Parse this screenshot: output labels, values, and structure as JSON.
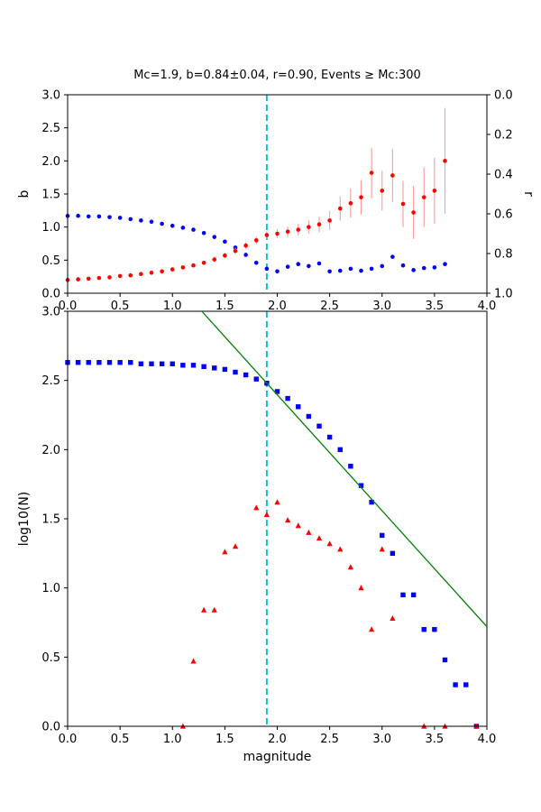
{
  "figure": {
    "title": "Mc=1.9, b=0.84±0.04, r=0.90, Events ≥ Mc:300",
    "background": "#ffffff"
  },
  "colors": {
    "blue": "#0000ff",
    "red": "#ff0000",
    "green": "#008000",
    "cyan": "#00c4cc",
    "errorbar": "#ff9a9a",
    "axis": "#000000"
  },
  "chart_data": [
    {
      "name": "b-and-r-vs-magnitude",
      "type": "scatter",
      "title": "Mc=1.9, b=0.84±0.04, r=0.90, Events ≥ Mc:300",
      "xlabel": "",
      "ylabel_left": "b",
      "ylabel_right": "r",
      "xlim": [
        0.0,
        4.0
      ],
      "ylim_left": [
        0.0,
        3.0
      ],
      "ylim_right_top_to_bottom": [
        0.0,
        1.0
      ],
      "xticks": [
        0.0,
        0.5,
        1.0,
        1.5,
        2.0,
        2.5,
        3.0,
        3.5,
        4.0
      ],
      "yticks_left": [
        0.0,
        0.5,
        1.0,
        1.5,
        2.0,
        2.5,
        3.0
      ],
      "yticks_right": [
        0.0,
        0.2,
        0.4,
        0.6,
        0.8,
        1.0
      ],
      "grid": false,
      "vline_x": 1.9,
      "series": [
        {
          "name": "b-value",
          "marker": "circle",
          "color": "blue",
          "x": [
            0.0,
            0.1,
            0.2,
            0.3,
            0.4,
            0.5,
            0.6,
            0.7,
            0.8,
            0.9,
            1.0,
            1.1,
            1.2,
            1.3,
            1.4,
            1.5,
            1.6,
            1.7,
            1.8,
            1.9,
            2.0,
            2.1,
            2.2,
            2.3,
            2.4,
            2.5,
            2.6,
            2.7,
            2.8,
            2.9,
            3.0,
            3.1,
            3.2,
            3.3,
            3.4,
            3.5,
            3.6
          ],
          "y": [
            1.17,
            1.17,
            1.16,
            1.16,
            1.15,
            1.14,
            1.12,
            1.1,
            1.08,
            1.05,
            1.02,
            0.99,
            0.96,
            0.91,
            0.85,
            0.78,
            0.69,
            0.58,
            0.46,
            0.37,
            0.33,
            0.4,
            0.44,
            0.41,
            0.45,
            0.33,
            0.34,
            0.37,
            0.34,
            0.37,
            0.41,
            0.55,
            0.42,
            0.35,
            0.38,
            0.39,
            0.44
          ]
        },
        {
          "name": "r-value",
          "marker": "circle",
          "color": "red",
          "note": "plotted in left-axis units; right axis maps left 3.0->r 0.0, left 0.0->r 1.0",
          "x": [
            0.0,
            0.1,
            0.2,
            0.3,
            0.4,
            0.5,
            0.6,
            0.7,
            0.8,
            0.9,
            1.0,
            1.1,
            1.2,
            1.3,
            1.4,
            1.5,
            1.6,
            1.7,
            1.8,
            1.9,
            2.0,
            2.1,
            2.2,
            2.3,
            2.4,
            2.5,
            2.6,
            2.7,
            2.8,
            2.9,
            3.0,
            3.1,
            3.2,
            3.3,
            3.4,
            3.5,
            3.6
          ],
          "y": [
            0.2,
            0.21,
            0.22,
            0.23,
            0.24,
            0.26,
            0.27,
            0.29,
            0.31,
            0.33,
            0.36,
            0.39,
            0.42,
            0.46,
            0.51,
            0.57,
            0.64,
            0.72,
            0.8,
            0.88,
            0.9,
            0.93,
            0.96,
            1.0,
            1.04,
            1.1,
            1.28,
            1.36,
            1.45,
            1.82,
            1.55,
            1.78,
            1.35,
            1.22,
            1.45,
            1.55,
            2.0
          ],
          "yerr": [
            0.02,
            0.02,
            0.02,
            0.02,
            0.02,
            0.02,
            0.02,
            0.02,
            0.02,
            0.02,
            0.03,
            0.03,
            0.03,
            0.03,
            0.04,
            0.04,
            0.05,
            0.05,
            0.06,
            0.06,
            0.07,
            0.08,
            0.09,
            0.1,
            0.12,
            0.14,
            0.18,
            0.22,
            0.26,
            0.38,
            0.3,
            0.4,
            0.35,
            0.4,
            0.45,
            0.5,
            0.8
          ]
        }
      ]
    },
    {
      "name": "frequency-magnitude-distribution",
      "type": "scatter",
      "title": "",
      "xlabel": "magnitude",
      "ylabel_left": "log10(N)",
      "xlim": [
        0.0,
        4.0
      ],
      "ylim_left": [
        0.0,
        3.0
      ],
      "xticks": [
        0.0,
        0.5,
        1.0,
        1.5,
        2.0,
        2.5,
        3.0,
        3.5,
        4.0
      ],
      "yticks_left": [
        0.0,
        0.5,
        1.0,
        1.5,
        2.0,
        2.5,
        3.0
      ],
      "grid": false,
      "vline_x": 1.9,
      "series": [
        {
          "name": "cumulative-counts",
          "marker": "square",
          "color": "blue",
          "x": [
            0.0,
            0.1,
            0.2,
            0.3,
            0.4,
            0.5,
            0.6,
            0.7,
            0.8,
            0.9,
            1.0,
            1.1,
            1.2,
            1.3,
            1.4,
            1.5,
            1.6,
            1.7,
            1.8,
            1.9,
            2.0,
            2.1,
            2.2,
            2.3,
            2.4,
            2.5,
            2.6,
            2.7,
            2.8,
            2.9,
            3.0,
            3.1,
            3.2,
            3.3,
            3.4,
            3.5,
            3.6,
            3.7,
            3.8,
            3.9
          ],
          "y": [
            2.63,
            2.63,
            2.63,
            2.63,
            2.63,
            2.63,
            2.63,
            2.62,
            2.62,
            2.62,
            2.62,
            2.61,
            2.61,
            2.6,
            2.59,
            2.58,
            2.56,
            2.54,
            2.51,
            2.48,
            2.42,
            2.37,
            2.31,
            2.24,
            2.17,
            2.09,
            2.0,
            1.88,
            1.74,
            1.62,
            1.38,
            1.25,
            0.95,
            0.95,
            0.7,
            0.7,
            0.48,
            0.3,
            0.3,
            0.0
          ]
        },
        {
          "name": "incremental-counts",
          "marker": "triangle",
          "color": "red",
          "x": [
            1.1,
            1.2,
            1.3,
            1.4,
            1.5,
            1.6,
            1.8,
            1.9,
            2.0,
            2.1,
            2.2,
            2.3,
            2.4,
            2.5,
            2.6,
            2.7,
            2.8,
            2.9,
            3.0,
            3.1,
            3.4,
            3.6,
            3.9
          ],
          "y": [
            0.0,
            0.47,
            0.84,
            0.84,
            1.26,
            1.3,
            1.58,
            1.53,
            1.62,
            1.49,
            1.45,
            1.4,
            1.36,
            1.32,
            1.28,
            1.15,
            1.0,
            0.7,
            1.28,
            0.78,
            0.0,
            0.0,
            0.0
          ]
        },
        {
          "name": "gr-fit-line",
          "marker": "line",
          "color": "green",
          "x": [
            1.28,
            4.0
          ],
          "y": [
            3.0,
            0.72
          ]
        }
      ]
    }
  ]
}
